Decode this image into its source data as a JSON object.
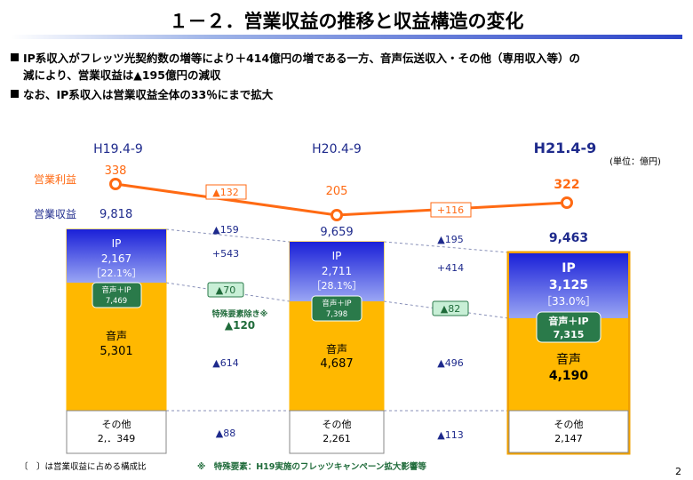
{
  "title": "１－２．営業収益の推移と収益構造の変化",
  "bullets": [
    "IP系収入がフレッツ光契約数の増等により＋414億円の増である一方、音声伝送収入・その他（専用収入等）の",
    "減により、営業収益は▲195億円の減収",
    "なお、IP系収入は営業収益全体の33％にまで拡大"
  ],
  "chart_data": {
    "type": "stacked bar with line",
    "unit": "(単位：億円)",
    "row_labels": {
      "profit": "営業利益",
      "revenue": "営業収益"
    },
    "periods": [
      {
        "label": "H19.4-9",
        "profit": 338,
        "revenue": "9,818",
        "ip_label": "IP",
        "ip": "2,167",
        "ip_share": "［22.1%］",
        "voice_label": "音声",
        "voice": "5,301",
        "voice_ip_label": "音声＋IP",
        "voice_ip": "7,469",
        "other_label": "その他",
        "other": "2,．349"
      },
      {
        "label": "H20.4-9",
        "profit": 205,
        "revenue": "9,659",
        "ip_label": "IP",
        "ip": "2,711",
        "ip_share": "［28.1%］",
        "voice_label": "音声",
        "voice": "4,687",
        "voice_ip_label": "音声＋IP",
        "voice_ip": "7,398",
        "other_label": "その他",
        "other": "2,261"
      },
      {
        "label": "H21.4-9",
        "profit": 322,
        "revenue": "9,463",
        "ip_label": "IP",
        "ip": "3,125",
        "ip_share": "［33.0%］",
        "voice_label": "音声",
        "voice": "4,190",
        "voice_ip_label": "音声＋IP",
        "voice_ip": "7,315",
        "other_label": "その他",
        "other": "2,147"
      }
    ],
    "series": [
      {
        "name": "IP",
        "values": [
          2167,
          2711,
          3125
        ]
      },
      {
        "name": "音声",
        "values": [
          5301,
          4687,
          4190
        ]
      },
      {
        "name": "その他",
        "values": [
          2349,
          2261,
          2147
        ]
      }
    ],
    "profit_line": [
      338,
      205,
      322
    ],
    "changes": [
      {
        "profit": "▲132",
        "revenue": "▲159",
        "ip": "+543",
        "voice_ip": "▲70",
        "special_label": "特殊要素除き※",
        "special_value": "▲120",
        "voice": "▲614",
        "other": "▲88"
      },
      {
        "profit": "+116",
        "revenue": "▲195",
        "ip": "+414",
        "voice_ip": "▲82",
        "voice": "▲496",
        "other": "▲113"
      }
    ]
  },
  "colors": {
    "ip_top": "#1a20d8",
    "ip_bottom": "#8e9cf2",
    "voice": "#ffb800",
    "line": "#ff6a13",
    "green": "#1f6b3a",
    "blue_text": "#1e2a8c"
  },
  "footnote_left": "〔　〕は営業収益に占める構成比",
  "footnote_mid": "※　特殊要素：H19実施のフレッツキャンペーン拡大影響等",
  "page_number": "2"
}
